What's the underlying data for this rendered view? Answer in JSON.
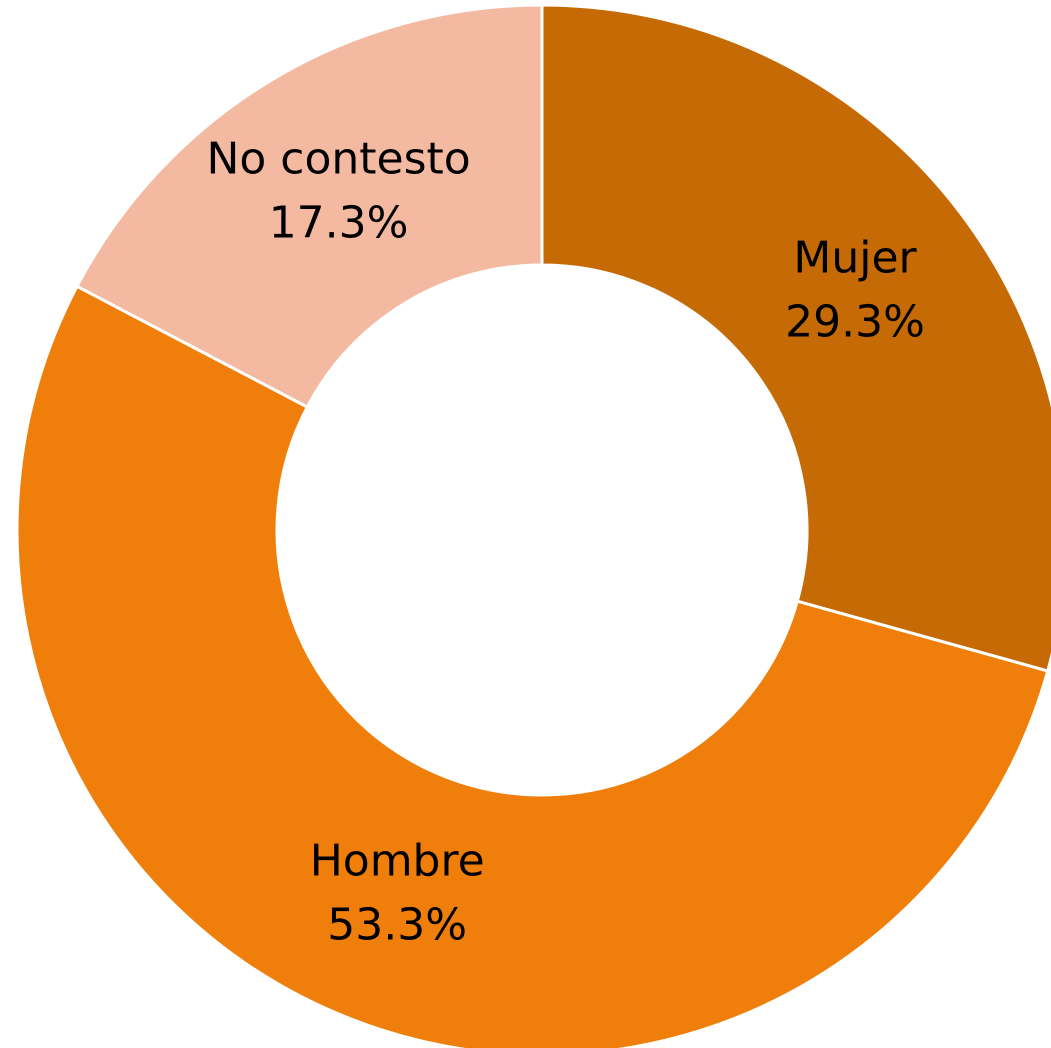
{
  "chart_data": {
    "type": "donut",
    "categories": [
      "Mujer",
      "Hombre",
      "No contesto"
    ],
    "values": [
      29.3,
      53.3,
      17.3
    ],
    "value_labels": [
      "29.3%",
      "53.3%",
      "17.3%"
    ],
    "colors": [
      "#c56a05",
      "#ef7f0a",
      "#f4b9a1"
    ]
  }
}
